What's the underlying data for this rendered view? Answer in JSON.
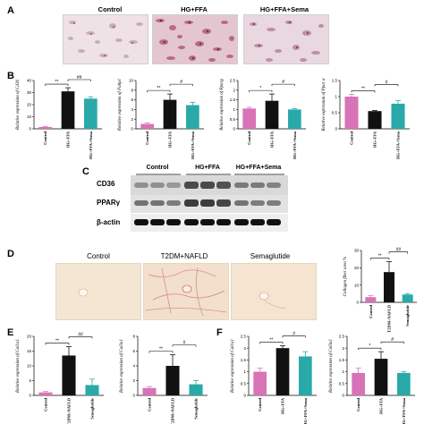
{
  "panels": {
    "a": {
      "letter": "A",
      "labels": [
        "Control",
        "HG+FFA",
        "HG+FFA+Sema"
      ]
    },
    "b": {
      "letter": "B"
    },
    "c": {
      "letter": "C",
      "groups": [
        "Control",
        "HG+FFA",
        "HG+FFA+Sema"
      ],
      "bands": [
        "CD36",
        "PPARγ",
        "β-actin"
      ]
    },
    "d": {
      "letter": "D",
      "labels": [
        "Control",
        "T2DM+NAFLD",
        "Semaglutide"
      ]
    },
    "e": {
      "letter": "E"
    },
    "f": {
      "letter": "F"
    }
  },
  "colors": {
    "control": "#d873b8",
    "model": "#111111",
    "treat": "#2aa9a9"
  },
  "chart_data": [
    {
      "id": "B1",
      "type": "bar",
      "ylabel": "Relative expression of Cd36",
      "ylim": [
        0,
        40
      ],
      "yticks": [
        0,
        10,
        20,
        30,
        40
      ],
      "categories": [
        "Control",
        "HG+FFA",
        "HG+FFA+Sema"
      ],
      "values": [
        1.5,
        31,
        25
      ],
      "errors": [
        0.5,
        3,
        1.5
      ],
      "sig": [
        {
          "from": 0,
          "to": 1,
          "label": "**"
        },
        {
          "from": 1,
          "to": 2,
          "label": "##"
        }
      ]
    },
    {
      "id": "B2",
      "type": "bar",
      "ylabel": "Relative expression of Fabp1",
      "ylim": [
        0,
        10
      ],
      "yticks": [
        0,
        2,
        4,
        6,
        8,
        10
      ],
      "categories": [
        "Control",
        "HG+FFA",
        "HG+FFA+Sema"
      ],
      "values": [
        1,
        6,
        4.9
      ],
      "errors": [
        0.2,
        1.2,
        0.6
      ],
      "sig": [
        {
          "from": 0,
          "to": 1,
          "label": "**"
        },
        {
          "from": 1,
          "to": 2,
          "label": "#"
        }
      ]
    },
    {
      "id": "B3",
      "type": "bar",
      "ylabel": "Relative expression of Pparg",
      "ylim": [
        0,
        2.5
      ],
      "yticks": [
        0,
        0.5,
        1,
        1.5,
        2,
        2.5
      ],
      "categories": [
        "Control",
        "HG+FFA",
        "HG+FFA+Sema"
      ],
      "values": [
        1.05,
        1.45,
        1.0
      ],
      "errors": [
        0.06,
        0.35,
        0.04
      ],
      "sig": [
        {
          "from": 0,
          "to": 1,
          "label": "*"
        },
        {
          "from": 1,
          "to": 2,
          "label": "#"
        }
      ]
    },
    {
      "id": "B4",
      "type": "bar",
      "ylabel": "Relative expression of Ppar α",
      "ylim": [
        0,
        1.5
      ],
      "yticks": [
        0,
        0.5,
        1,
        1.5
      ],
      "categories": [
        "Control",
        "HG+FFA",
        "HG+FFA+Sema"
      ],
      "values": [
        1.0,
        0.55,
        0.78
      ],
      "errors": [
        0.07,
        0.02,
        0.1
      ],
      "sig": [
        {
          "from": 0,
          "to": 1,
          "label": "**"
        },
        {
          "from": 1,
          "to": 2,
          "label": "#"
        }
      ]
    },
    {
      "id": "D1",
      "type": "bar",
      "ylabel": "Collagen fiber area %",
      "ylim": [
        0,
        30
      ],
      "yticks": [
        0,
        10,
        20,
        30
      ],
      "categories": [
        "Control",
        "T2DM+NAFLD",
        "Semaglutide"
      ],
      "values": [
        3,
        17.5,
        4.5
      ],
      "errors": [
        1,
        6,
        0.5
      ],
      "sig": [
        {
          "from": 0,
          "to": 1,
          "label": "**"
        },
        {
          "from": 1,
          "to": 2,
          "label": "##"
        }
      ]
    },
    {
      "id": "E1",
      "type": "bar",
      "ylabel": "Relative expression of Col1a1",
      "ylim": [
        0,
        20
      ],
      "yticks": [
        0,
        5,
        10,
        15,
        20
      ],
      "categories": [
        "Control",
        "T2DM+NAFLD",
        "Semaglutide"
      ],
      "values": [
        1,
        13.5,
        3.5
      ],
      "errors": [
        0.3,
        3,
        2
      ],
      "sig": [
        {
          "from": 0,
          "to": 1,
          "label": "**"
        },
        {
          "from": 1,
          "to": 2,
          "label": "##"
        }
      ]
    },
    {
      "id": "E2",
      "type": "bar",
      "ylabel": "Relative expression of Col3a1",
      "ylim": [
        0,
        8
      ],
      "yticks": [
        0,
        2,
        4,
        6,
        8
      ],
      "categories": [
        "Control",
        "T2DM+NAFLD",
        "Semaglutide"
      ],
      "values": [
        1,
        4,
        1.5
      ],
      "errors": [
        0.2,
        1.5,
        0.5
      ],
      "sig": [
        {
          "from": 0,
          "to": 1,
          "label": "**"
        },
        {
          "from": 1,
          "to": 2,
          "label": "#"
        }
      ]
    },
    {
      "id": "F1",
      "type": "bar",
      "ylabel": "Relative expression of Col1a1",
      "ylim": [
        0,
        2.5
      ],
      "yticks": [
        0,
        0.5,
        1,
        1.5,
        2,
        2.5
      ],
      "categories": [
        "Control",
        "HG+FFA",
        "HG+FFA+Sema"
      ],
      "values": [
        1.0,
        2.0,
        1.65
      ],
      "errors": [
        0.15,
        0.1,
        0.2
      ],
      "sig": [
        {
          "from": 0,
          "to": 1,
          "label": "**"
        },
        {
          "from": 1,
          "to": 2,
          "label": "#"
        }
      ]
    },
    {
      "id": "F2",
      "type": "bar",
      "ylabel": "Relative expression of Col3a1",
      "ylim": [
        0,
        2.5
      ],
      "yticks": [
        0,
        0.5,
        1,
        1.5,
        2,
        2.5
      ],
      "categories": [
        "Control",
        "HG+FFA",
        "HG+FFA+Sema"
      ],
      "values": [
        0.95,
        1.55,
        0.95
      ],
      "errors": [
        0.2,
        0.3,
        0.05
      ],
      "sig": [
        {
          "from": 0,
          "to": 1,
          "label": "*"
        },
        {
          "from": 1,
          "to": 2,
          "label": "#"
        }
      ]
    }
  ]
}
